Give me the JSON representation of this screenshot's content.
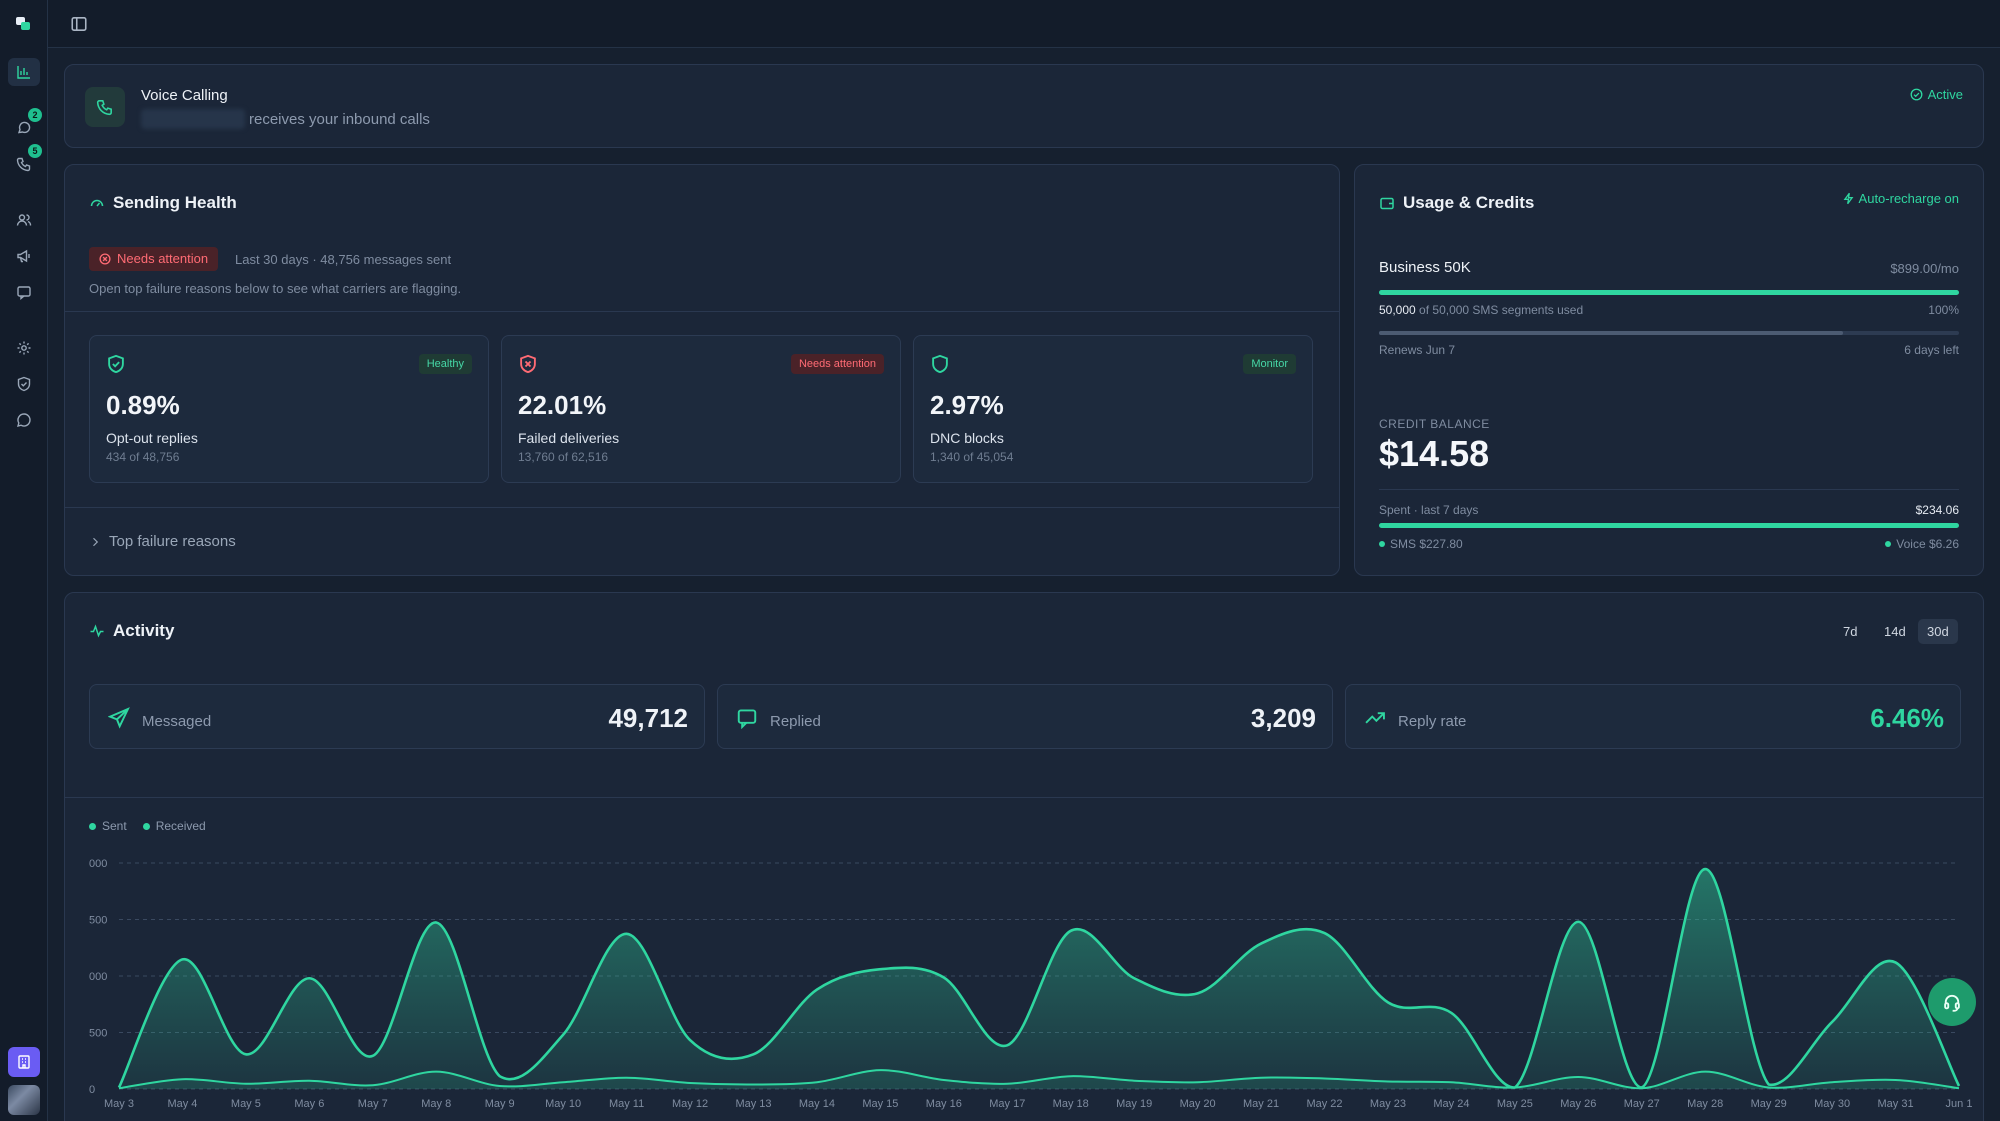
{
  "sidebar": {
    "badges": {
      "messages": "2",
      "calls": "5"
    }
  },
  "voice": {
    "title": "Voice Calling",
    "desc": "receives your inbound calls",
    "status": "Active"
  },
  "health": {
    "title": "Sending Health",
    "status": "Needs attention",
    "summary": "Last 30 days · 48,756 messages sent",
    "hint": "Open top failure reasons below to see what carriers are flagging.",
    "metrics": [
      {
        "value": "0.89%",
        "label": "Opt-out replies",
        "sub": "434 of 48,756",
        "tag": "Healthy"
      },
      {
        "value": "22.01%",
        "label": "Failed deliveries",
        "sub": "13,760 of 62,516",
        "tag": "Needs attention"
      },
      {
        "value": "2.97%",
        "label": "DNC blocks",
        "sub": "1,340 of 45,054",
        "tag": "Monitor"
      }
    ],
    "expander": "Top failure reasons"
  },
  "usage": {
    "title": "Usage & Credits",
    "autorecharge": "Auto-recharge on",
    "plan": "Business 50K",
    "price": "$899.00/mo",
    "used_strong": "50,000",
    "used_rest": "of 50,000 SMS segments used",
    "used_pct": "100%",
    "used_fraction": 1.0,
    "renews": "Renews Jun 7",
    "days_left": "6 days left",
    "cycle_fraction": 0.8,
    "credit_label": "CREDIT BALANCE",
    "credit": "$14.58",
    "spent_label": "Spent · last 7 days",
    "spent": "$234.06",
    "sms": "SMS $227.80",
    "voice": "Voice $6.26"
  },
  "activity": {
    "title": "Activity",
    "ranges": [
      "7d",
      "14d",
      "30d"
    ],
    "stats": [
      {
        "label": "Messaged",
        "value": "49,712"
      },
      {
        "label": "Replied",
        "value": "3,209"
      },
      {
        "label": "Reply rate",
        "value": "6.46%"
      }
    ]
  },
  "chart_data": {
    "type": "area",
    "legend": [
      "Sent",
      "Received"
    ],
    "y_tick_labels": [
      "0",
      "500",
      "000",
      "500",
      "000"
    ],
    "ylim": [
      0,
      3000
    ],
    "categories": [
      "May 3",
      "May 4",
      "May 5",
      "May 6",
      "May 7",
      "May 8",
      "May 9",
      "May 10",
      "May 11",
      "May 12",
      "May 13",
      "May 14",
      "May 15",
      "May 16",
      "May 17",
      "May 18",
      "May 19",
      "May 20",
      "May 21",
      "May 22",
      "May 23",
      "May 24",
      "May 25",
      "May 26",
      "May 27",
      "May 28",
      "May 29",
      "May 30",
      "May 31",
      "Jun 1"
    ],
    "series": [
      {
        "name": "Sent",
        "values": [
          20,
          1720,
          460,
          1470,
          440,
          2210,
          170,
          720,
          2060,
          650,
          460,
          1320,
          1590,
          1480,
          580,
          2100,
          1470,
          1270,
          1930,
          2070,
          1150,
          1010,
          20,
          2220,
          20,
          2920,
          60,
          890,
          1680,
          40
        ]
      },
      {
        "name": "Received",
        "values": [
          10,
          130,
          70,
          110,
          50,
          230,
          40,
          90,
          150,
          80,
          60,
          90,
          250,
          120,
          70,
          170,
          110,
          90,
          150,
          140,
          100,
          90,
          20,
          160,
          10,
          230,
          20,
          90,
          120,
          10
        ]
      }
    ]
  }
}
